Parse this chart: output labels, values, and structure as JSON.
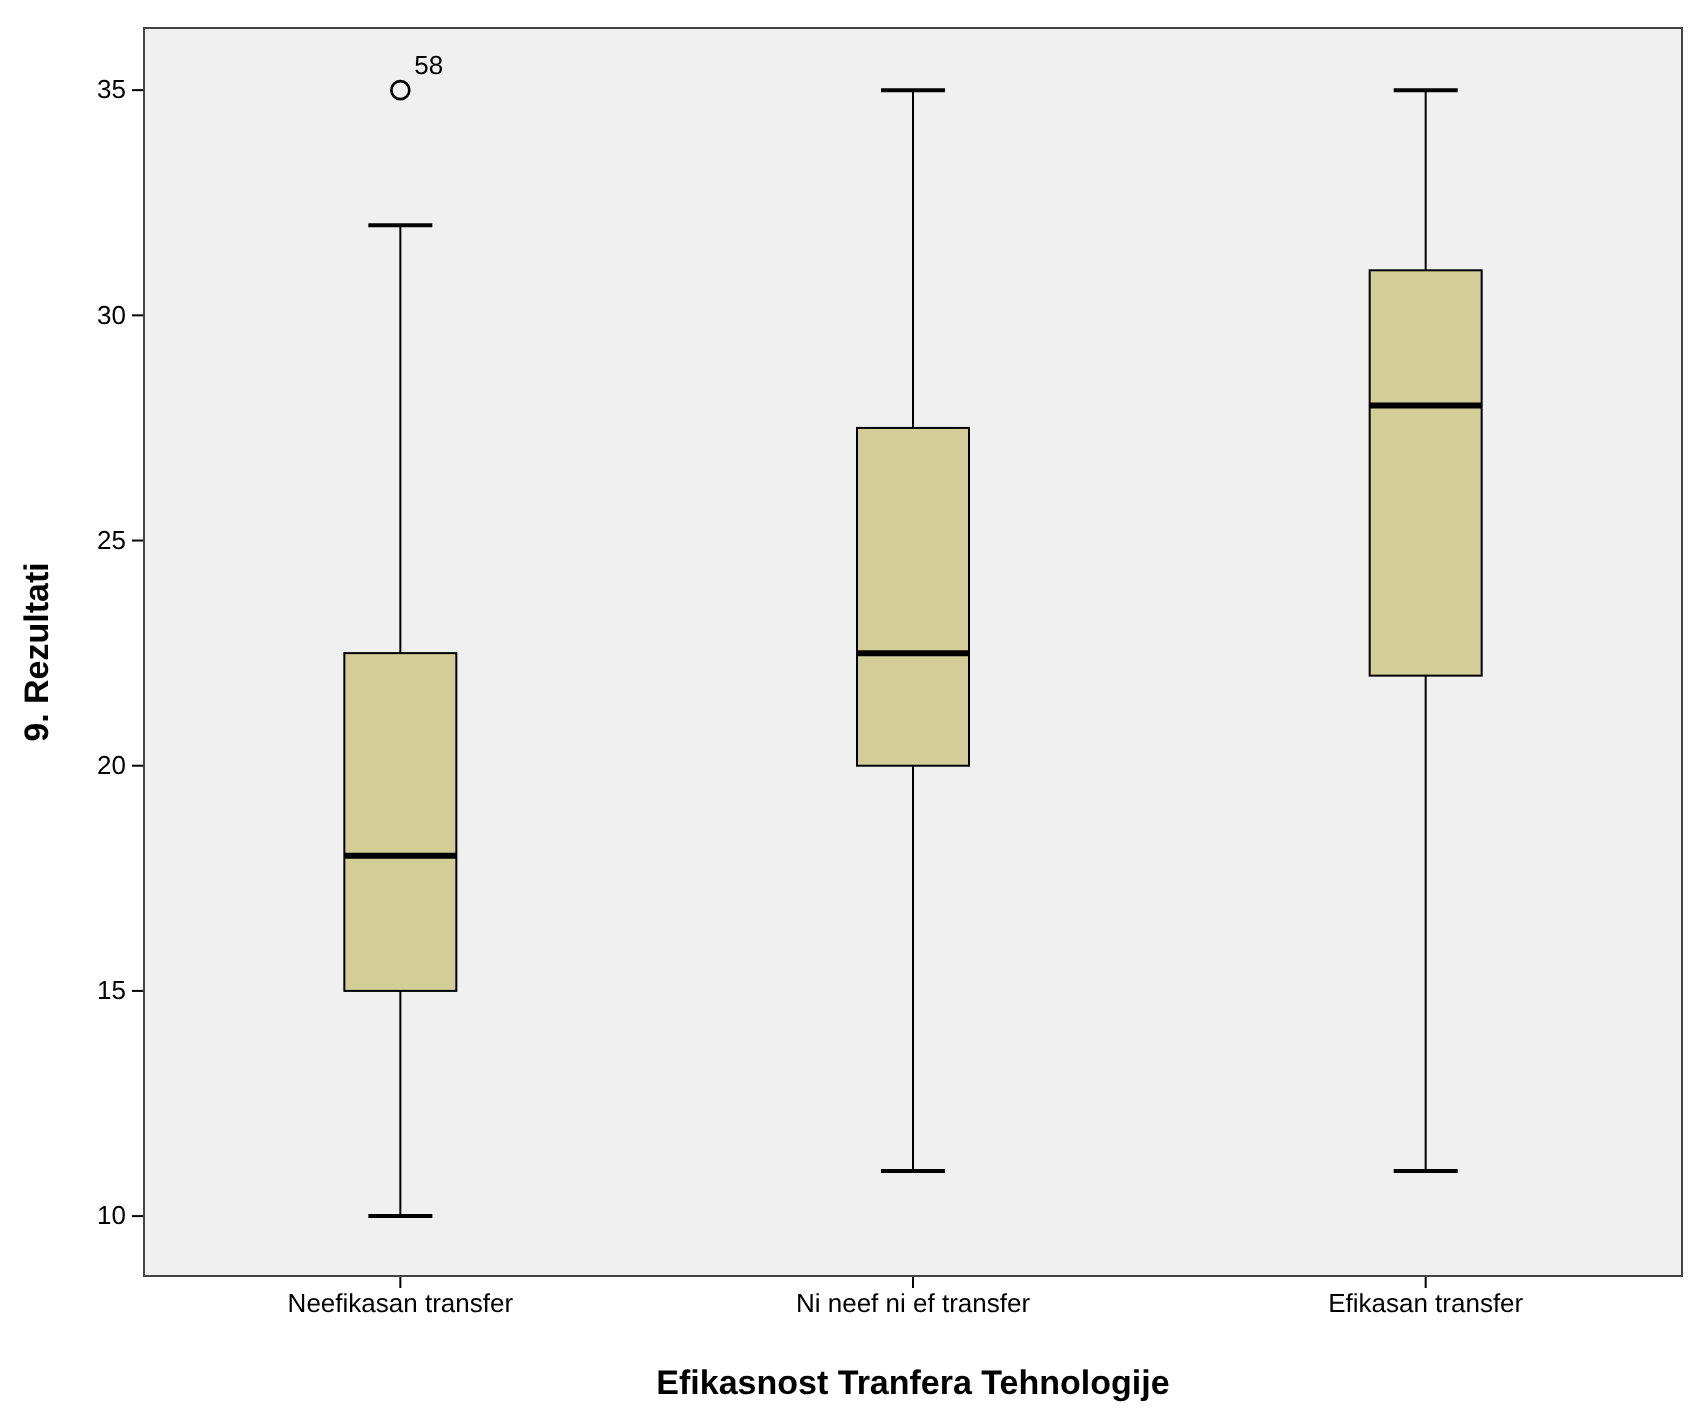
{
  "chart_data": {
    "type": "box",
    "xlabel": "Efikasnost Tranfera Tehnologije",
    "ylabel": "9. Rezultati",
    "categories": [
      "Neefikasan transfer",
      "Ni neef ni ef transfer",
      "Efikasan transfer"
    ],
    "boxes": [
      {
        "low": 10,
        "q1": 15,
        "median": 18,
        "q3": 22.5,
        "high": 32,
        "outliers": [
          35
        ]
      },
      {
        "low": 11,
        "q1": 20,
        "median": 22.5,
        "q3": 27.5,
        "high": 35
      },
      {
        "low": 11,
        "q1": 22,
        "median": 28,
        "q3": 31,
        "high": 35
      }
    ],
    "color": "#d3ce98",
    "annotations": [
      "58"
    ],
    "ylim": [
      8.67,
      36.38
    ],
    "yticks": [
      10,
      15,
      20,
      25,
      30,
      35
    ],
    "grid": false
  }
}
